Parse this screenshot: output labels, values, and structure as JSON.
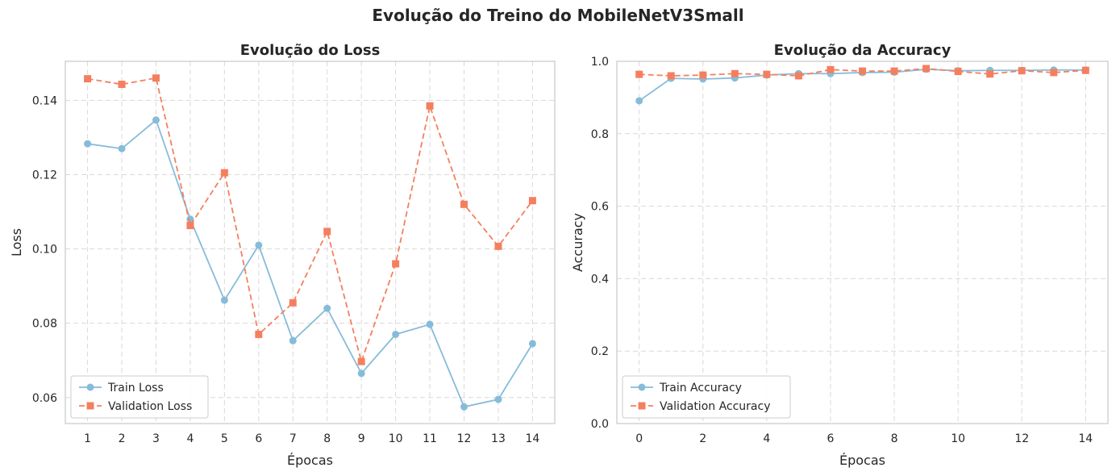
{
  "suptitle": "Evolução do Treino do MobileNetV3Small",
  "colors": {
    "train": "#86bcd9",
    "validation": "#f47f5f",
    "grid": "#d9d9d9",
    "frame": "#cccccc"
  },
  "chart_data": [
    {
      "type": "line",
      "title": "Evolução do Loss",
      "xlabel": "Épocas",
      "ylabel": "Loss",
      "xlim": [
        0.35,
        14.65
      ],
      "ylim": [
        0.053,
        0.1505
      ],
      "xticks": [
        1,
        2,
        3,
        4,
        5,
        6,
        7,
        8,
        9,
        10,
        11,
        12,
        13,
        14
      ],
      "yticks": [
        0.06,
        0.08,
        0.1,
        0.12,
        0.14
      ],
      "ytick_labels": [
        "0.06",
        "0.08",
        "0.10",
        "0.12",
        "0.14"
      ],
      "grid": true,
      "legend": "lower-left",
      "x": [
        1,
        2,
        3,
        4,
        5,
        6,
        7,
        8,
        9,
        10,
        11,
        12,
        13,
        14
      ],
      "series": [
        {
          "name": "Train Loss",
          "color": "#86bcd9",
          "marker": "circle",
          "linestyle": "solid",
          "values": [
            0.1283,
            0.127,
            0.1347,
            0.108,
            0.0862,
            0.101,
            0.0753,
            0.084,
            0.0665,
            0.077,
            0.0797,
            0.0575,
            0.0595,
            0.0745
          ]
        },
        {
          "name": "Validation Loss",
          "color": "#f47f5f",
          "marker": "square",
          "linestyle": "dashed",
          "values": [
            0.1458,
            0.1443,
            0.146,
            0.1063,
            0.1205,
            0.077,
            0.0855,
            0.1047,
            0.0697,
            0.096,
            0.1385,
            0.112,
            0.1007,
            0.113
          ]
        }
      ]
    },
    {
      "type": "line",
      "title": "Evolução da Accuracy",
      "xlabel": "Épocas",
      "ylabel": "Accuracy",
      "xlim": [
        -0.7,
        14.7
      ],
      "ylim": [
        0.0,
        1.0
      ],
      "xticks": [
        0,
        2,
        4,
        6,
        8,
        10,
        12,
        14
      ],
      "yticks": [
        0.0,
        0.2,
        0.4,
        0.6,
        0.8,
        1.0
      ],
      "ytick_labels": [
        "0.0",
        "0.2",
        "0.4",
        "0.6",
        "0.8",
        "1.0"
      ],
      "grid": true,
      "legend": "lower-left",
      "x": [
        0,
        1,
        2,
        3,
        4,
        5,
        6,
        7,
        8,
        9,
        10,
        11,
        12,
        13,
        14
      ],
      "series": [
        {
          "name": "Train Accuracy",
          "color": "#86bcd9",
          "marker": "circle",
          "linestyle": "solid",
          "values": [
            0.891,
            0.953,
            0.951,
            0.954,
            0.962,
            0.966,
            0.966,
            0.969,
            0.97,
            0.978,
            0.974,
            0.975,
            0.975,
            0.976,
            0.976
          ]
        },
        {
          "name": "Validation Accuracy",
          "color": "#f47f5f",
          "marker": "square",
          "linestyle": "dashed",
          "values": [
            0.964,
            0.96,
            0.962,
            0.966,
            0.964,
            0.96,
            0.977,
            0.973,
            0.973,
            0.98,
            0.972,
            0.965,
            0.974,
            0.969,
            0.975
          ]
        }
      ]
    }
  ]
}
